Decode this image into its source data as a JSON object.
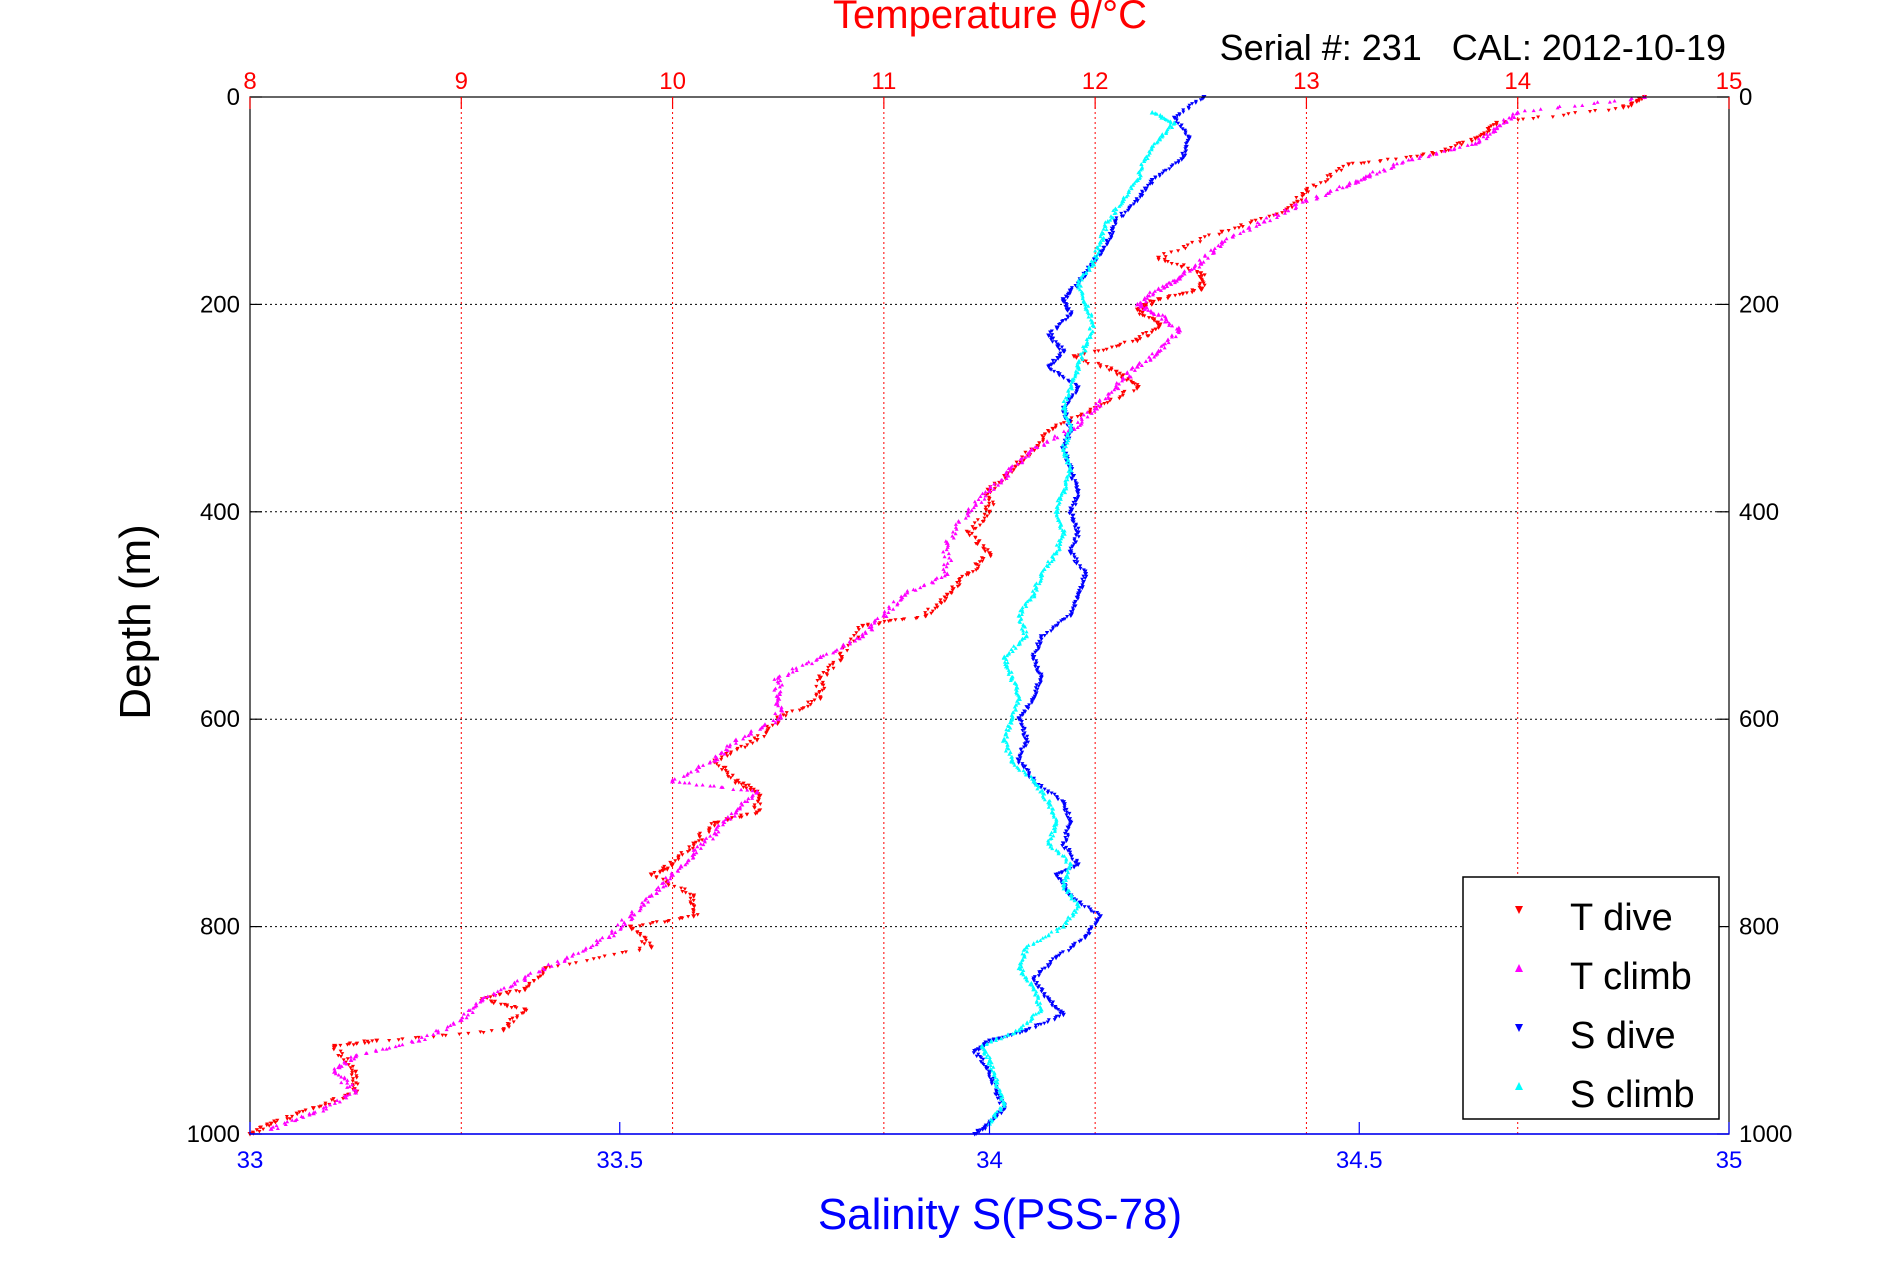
{
  "colors": {
    "temperature_axis": "#ff0000",
    "salinity_axis": "#0000ff",
    "depth_axis": "#000000",
    "t_dive": "#ff0000",
    "t_climb": "#ff00ff",
    "s_dive": "#0000ff",
    "s_climb": "#00ffff"
  },
  "chart_data": {
    "type": "scatter",
    "title": "Temperature θ/°C",
    "subtitle": "Serial #: 231   CAL: 2012-10-19",
    "ylabel": "Depth (m)",
    "xlabel_bottom": "Salinity S(PSS-78)",
    "xlabel_top": "Temperature θ/°C",
    "y_axis": {
      "range": [
        0,
        1000
      ],
      "reversed": true,
      "ticks": [
        0,
        200,
        400,
        600,
        800,
        1000
      ],
      "grid": true
    },
    "x_top_temperature": {
      "range": [
        8,
        15
      ],
      "ticks": [
        8,
        9,
        10,
        11,
        12,
        13,
        14,
        15
      ],
      "grid": true
    },
    "x_bottom_salinity": {
      "range": [
        33,
        35
      ],
      "ticks": [
        33,
        33.5,
        34,
        34.5,
        35
      ]
    },
    "legend": {
      "placement": "bottom-right",
      "entries": [
        "T dive",
        "T climb",
        "S dive",
        "S climb"
      ]
    },
    "series": [
      {
        "name": "T dive",
        "axis": "temperature",
        "marker": "triangle-down",
        "color": "#ff0000",
        "points": [
          [
            14.6,
            0
          ],
          [
            14.5,
            10
          ],
          [
            13.9,
            25
          ],
          [
            13.8,
            40
          ],
          [
            13.6,
            55
          ],
          [
            13.2,
            65
          ],
          [
            13.0,
            90
          ],
          [
            12.9,
            110
          ],
          [
            12.6,
            130
          ],
          [
            12.3,
            155
          ],
          [
            12.5,
            170
          ],
          [
            12.5,
            185
          ],
          [
            12.3,
            195
          ],
          [
            12.2,
            205
          ],
          [
            12.3,
            220
          ],
          [
            12.2,
            235
          ],
          [
            11.9,
            250
          ],
          [
            12.1,
            265
          ],
          [
            12.2,
            280
          ],
          [
            12.0,
            300
          ],
          [
            11.8,
            320
          ],
          [
            11.7,
            340
          ],
          [
            11.6,
            360
          ],
          [
            11.5,
            380
          ],
          [
            11.5,
            400
          ],
          [
            11.4,
            420
          ],
          [
            11.5,
            440
          ],
          [
            11.4,
            460
          ],
          [
            11.3,
            480
          ],
          [
            11.2,
            500
          ],
          [
            10.9,
            510
          ],
          [
            10.8,
            540
          ],
          [
            10.7,
            560
          ],
          [
            10.7,
            580
          ],
          [
            10.5,
            600
          ],
          [
            10.4,
            620
          ],
          [
            10.2,
            640
          ],
          [
            10.3,
            660
          ],
          [
            10.4,
            670
          ],
          [
            10.4,
            690
          ],
          [
            10.2,
            700
          ],
          [
            10.1,
            720
          ],
          [
            10.0,
            740
          ],
          [
            9.9,
            750
          ],
          [
            10.1,
            770
          ],
          [
            10.1,
            790
          ],
          [
            9.8,
            800
          ],
          [
            9.9,
            820
          ],
          [
            9.4,
            840
          ],
          [
            9.3,
            860
          ],
          [
            9.1,
            870
          ],
          [
            9.3,
            880
          ],
          [
            9.2,
            900
          ],
          [
            8.6,
            910
          ],
          [
            8.4,
            915
          ],
          [
            8.5,
            940
          ],
          [
            8.5,
            960
          ],
          [
            8.3,
            975
          ],
          [
            8.1,
            990
          ],
          [
            8.0,
            1000
          ]
        ]
      },
      {
        "name": "T climb",
        "axis": "temperature",
        "marker": "triangle-up",
        "color": "#ff00ff",
        "points": [
          [
            14.6,
            0
          ],
          [
            14.0,
            15
          ],
          [
            13.9,
            30
          ],
          [
            13.8,
            45
          ],
          [
            13.5,
            60
          ],
          [
            13.3,
            75
          ],
          [
            13.2,
            85
          ],
          [
            13.0,
            100
          ],
          [
            12.8,
            120
          ],
          [
            12.6,
            140
          ],
          [
            12.5,
            160
          ],
          [
            12.4,
            175
          ],
          [
            12.3,
            185
          ],
          [
            12.2,
            200
          ],
          [
            12.3,
            210
          ],
          [
            12.4,
            225
          ],
          [
            12.3,
            245
          ],
          [
            12.2,
            260
          ],
          [
            12.1,
            280
          ],
          [
            12.0,
            300
          ],
          [
            11.9,
            320
          ],
          [
            11.7,
            340
          ],
          [
            11.6,
            360
          ],
          [
            11.5,
            380
          ],
          [
            11.4,
            400
          ],
          [
            11.3,
            430
          ],
          [
            11.3,
            460
          ],
          [
            11.1,
            480
          ],
          [
            11.0,
            500
          ],
          [
            10.9,
            520
          ],
          [
            10.7,
            540
          ],
          [
            10.5,
            560
          ],
          [
            10.5,
            580
          ],
          [
            10.5,
            600
          ],
          [
            10.3,
            620
          ],
          [
            10.2,
            640
          ],
          [
            10.0,
            660
          ],
          [
            10.4,
            670
          ],
          [
            10.3,
            690
          ],
          [
            10.2,
            710
          ],
          [
            10.1,
            730
          ],
          [
            10.0,
            750
          ],
          [
            9.9,
            770
          ],
          [
            9.8,
            790
          ],
          [
            9.7,
            810
          ],
          [
            9.5,
            830
          ],
          [
            9.3,
            850
          ],
          [
            9.1,
            870
          ],
          [
            9.0,
            890
          ],
          [
            8.8,
            910
          ],
          [
            8.5,
            925
          ],
          [
            8.4,
            940
          ],
          [
            8.5,
            960
          ],
          [
            8.3,
            980
          ],
          [
            8.1,
            995
          ]
        ]
      },
      {
        "name": "S dive",
        "axis": "salinity",
        "marker": "triangle-down",
        "color": "#0000ff",
        "points": [
          [
            34.29,
            0
          ],
          [
            34.25,
            20
          ],
          [
            34.27,
            40
          ],
          [
            34.26,
            60
          ],
          [
            34.22,
            80
          ],
          [
            34.2,
            100
          ],
          [
            34.17,
            120
          ],
          [
            34.16,
            140
          ],
          [
            34.14,
            160
          ],
          [
            34.12,
            180
          ],
          [
            34.1,
            195
          ],
          [
            34.11,
            210
          ],
          [
            34.08,
            230
          ],
          [
            34.1,
            245
          ],
          [
            34.08,
            260
          ],
          [
            34.12,
            280
          ],
          [
            34.1,
            300
          ],
          [
            34.11,
            320
          ],
          [
            34.1,
            340
          ],
          [
            34.11,
            360
          ],
          [
            34.12,
            380
          ],
          [
            34.11,
            400
          ],
          [
            34.12,
            420
          ],
          [
            34.11,
            440
          ],
          [
            34.13,
            460
          ],
          [
            34.12,
            480
          ],
          [
            34.11,
            500
          ],
          [
            34.07,
            520
          ],
          [
            34.06,
            540
          ],
          [
            34.07,
            560
          ],
          [
            34.06,
            580
          ],
          [
            34.04,
            600
          ],
          [
            34.05,
            620
          ],
          [
            34.04,
            640
          ],
          [
            34.06,
            660
          ],
          [
            34.1,
            680
          ],
          [
            34.11,
            700
          ],
          [
            34.1,
            720
          ],
          [
            34.12,
            740
          ],
          [
            34.09,
            750
          ],
          [
            34.11,
            770
          ],
          [
            34.15,
            790
          ],
          [
            34.13,
            810
          ],
          [
            34.09,
            830
          ],
          [
            34.06,
            850
          ],
          [
            34.08,
            870
          ],
          [
            34.1,
            885
          ],
          [
            34.05,
            900
          ],
          [
            34.0,
            910
          ],
          [
            33.98,
            920
          ],
          [
            34.0,
            940
          ],
          [
            34.01,
            960
          ],
          [
            34.02,
            975
          ],
          [
            34.0,
            990
          ],
          [
            33.98,
            1000
          ]
        ]
      },
      {
        "name": "S climb",
        "axis": "salinity",
        "marker": "triangle-up",
        "color": "#00ffff",
        "points": [
          [
            34.22,
            15
          ],
          [
            34.25,
            25
          ],
          [
            34.23,
            40
          ],
          [
            34.21,
            60
          ],
          [
            34.2,
            80
          ],
          [
            34.18,
            100
          ],
          [
            34.16,
            120
          ],
          [
            34.15,
            140
          ],
          [
            34.14,
            160
          ],
          [
            34.12,
            180
          ],
          [
            34.13,
            200
          ],
          [
            34.14,
            220
          ],
          [
            34.13,
            240
          ],
          [
            34.12,
            260
          ],
          [
            34.11,
            280
          ],
          [
            34.1,
            300
          ],
          [
            34.11,
            320
          ],
          [
            34.1,
            340
          ],
          [
            34.11,
            360
          ],
          [
            34.1,
            380
          ],
          [
            34.09,
            400
          ],
          [
            34.1,
            420
          ],
          [
            34.09,
            440
          ],
          [
            34.07,
            460
          ],
          [
            34.06,
            480
          ],
          [
            34.04,
            500
          ],
          [
            34.05,
            520
          ],
          [
            34.02,
            540
          ],
          [
            34.03,
            560
          ],
          [
            34.04,
            580
          ],
          [
            34.03,
            600
          ],
          [
            34.02,
            620
          ],
          [
            34.03,
            640
          ],
          [
            34.06,
            660
          ],
          [
            34.08,
            680
          ],
          [
            34.09,
            700
          ],
          [
            34.08,
            720
          ],
          [
            34.11,
            740
          ],
          [
            34.1,
            760
          ],
          [
            34.12,
            780
          ],
          [
            34.1,
            800
          ],
          [
            34.05,
            820
          ],
          [
            34.04,
            840
          ],
          [
            34.06,
            860
          ],
          [
            34.07,
            880
          ],
          [
            34.04,
            900
          ],
          [
            33.99,
            915
          ],
          [
            34.0,
            930
          ],
          [
            34.01,
            950
          ],
          [
            34.02,
            970
          ],
          [
            34.0,
            990
          ]
        ]
      }
    ]
  }
}
